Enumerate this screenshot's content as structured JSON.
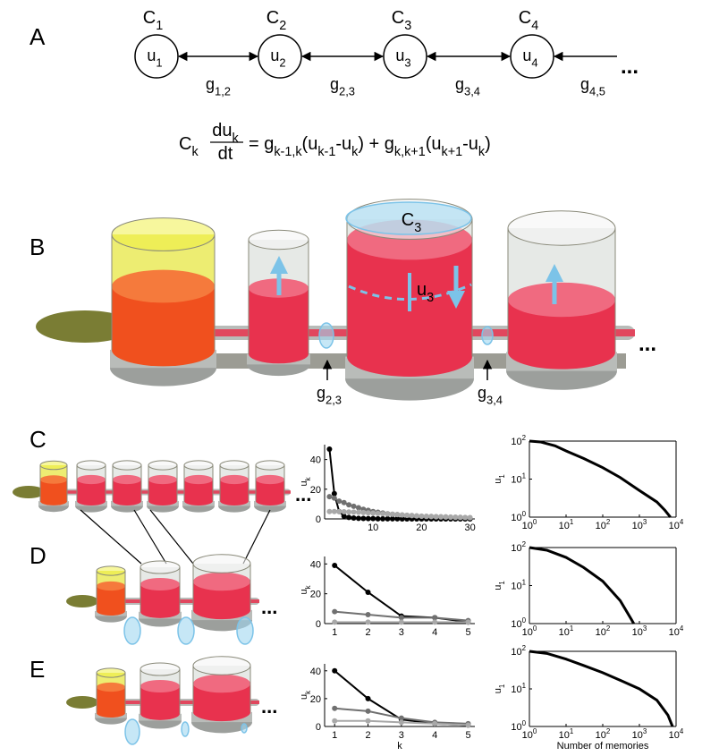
{
  "panel_labels": [
    "A",
    "B",
    "C",
    "D",
    "E"
  ],
  "diagram_a": {
    "nodes": [
      {
        "capacitance": {
          "main": "C",
          "sub": "1"
        },
        "label": {
          "main": "u",
          "sub": "1"
        }
      },
      {
        "capacitance": {
          "main": "C",
          "sub": "2"
        },
        "label": {
          "main": "u",
          "sub": "2"
        }
      },
      {
        "capacitance": {
          "main": "C",
          "sub": "3"
        },
        "label": {
          "main": "u",
          "sub": "3"
        }
      },
      {
        "capacitance": {
          "main": "C",
          "sub": "4"
        },
        "label": {
          "main": "u",
          "sub": "4"
        }
      }
    ],
    "conductances": [
      {
        "main": "g",
        "sub": "1,2"
      },
      {
        "main": "g",
        "sub": "2,3"
      },
      {
        "main": "g",
        "sub": "3,4"
      },
      {
        "main": "g",
        "sub": "4,5"
      }
    ],
    "ellipsis": "..."
  },
  "equation": {
    "lhs": {
      "main": "C",
      "sub": "k"
    },
    "numerator": {
      "main": "du",
      "sub": "k"
    },
    "denominator": "dt",
    "rhs": [
      {
        "text": "= g"
      },
      {
        "sub": "k-1,k"
      },
      {
        "text": "(u"
      },
      {
        "sub": "k-1"
      },
      {
        "text": "-u"
      },
      {
        "sub": "k"
      },
      {
        "text": ") + g"
      },
      {
        "sub": "k,k+1"
      },
      {
        "text": "(u"
      },
      {
        "sub": "k+1"
      },
      {
        "text": "-u"
      },
      {
        "sub": "k"
      },
      {
        "text": ")"
      }
    ]
  },
  "panel_b": {
    "capacitance": {
      "main": "C",
      "sub": "3"
    },
    "potential": {
      "main": "u",
      "sub": "3"
    },
    "conductances": [
      {
        "main": "g",
        "sub": "2,3"
      },
      {
        "main": "g",
        "sub": "3,4"
      }
    ],
    "ellipsis": "..."
  },
  "panel_c": {
    "ellipsis": "..."
  },
  "panel_d": {
    "ellipsis": "..."
  },
  "panel_e": {
    "ellipsis": "..."
  },
  "chart_data": [
    {
      "type": "line",
      "marker": "o",
      "box": false,
      "ylabel": {
        "main": "u",
        "sub": "k"
      },
      "x": [
        1,
        2,
        3,
        4,
        5,
        6,
        7,
        8,
        9,
        10,
        11,
        12,
        13,
        14,
        15,
        16,
        17,
        18,
        19,
        20,
        21,
        22,
        23,
        24,
        25,
        26,
        27,
        28,
        29,
        30
      ],
      "xlim": [
        0,
        31
      ],
      "ylim": [
        0,
        50
      ],
      "xticks": [
        10,
        20,
        30
      ],
      "yticks": [
        0,
        20,
        40
      ],
      "series": [
        {
          "color": "#000000",
          "values": [
            47,
            17,
            5,
            1.8,
            1,
            0.6,
            0.4,
            0.3,
            0.2,
            0.2,
            0.1,
            0.1,
            0.1,
            0.1,
            0.1,
            0,
            0,
            0,
            0,
            0,
            0,
            0,
            0,
            0,
            0,
            0,
            0,
            0,
            0,
            0
          ]
        },
        {
          "color": "#707070",
          "values": [
            15,
            14,
            12,
            11,
            9.5,
            8.5,
            7.5,
            6.5,
            5.8,
            5,
            4.5,
            4,
            3.5,
            3.2,
            2.9,
            2.6,
            2.3,
            2.1,
            1.9,
            1.7,
            1.5,
            1.4,
            1.3,
            1.2,
            1.1,
            1,
            0.9,
            0.8,
            0.8,
            0.7
          ]
        },
        {
          "color": "#a8a8a8",
          "values": [
            5,
            5,
            4.9,
            4.8,
            4.7,
            4.6,
            4.5,
            4.3,
            4.1,
            3.9,
            3.7,
            3.5,
            3.3,
            3.1,
            2.9,
            2.7,
            2.5,
            2.3,
            2.1,
            1.9,
            1.8,
            1.7,
            1.6,
            1.5,
            1.4,
            1.3,
            1.2,
            1.1,
            1,
            0.9
          ]
        }
      ]
    },
    {
      "type": "line",
      "log": true,
      "box": true,
      "ylabel": {
        "main": "u",
        "sub": "1"
      },
      "x": [
        1,
        2,
        5,
        10,
        30,
        100,
        300,
        1000,
        3000,
        5000,
        7000
      ],
      "xlim": [
        1,
        10000
      ],
      "ylim": [
        1,
        100
      ],
      "xticks": [
        {
          "value": 1,
          "label": "10",
          "exponent": "0"
        },
        {
          "value": 10,
          "label": "10",
          "exponent": "1"
        },
        {
          "value": 100,
          "label": "10",
          "exponent": "2"
        },
        {
          "value": 1000,
          "label": "10",
          "exponent": "3"
        },
        {
          "value": 10000,
          "label": "10",
          "exponent": "4"
        }
      ],
      "yticks": [
        {
          "value": 1,
          "label": "10",
          "exponent": "0"
        },
        {
          "value": 10,
          "label": "10",
          "exponent": "1"
        },
        {
          "value": 100,
          "label": "10",
          "exponent": "2"
        }
      ],
      "series": [
        {
          "color": "#000000",
          "values": [
            100,
            95,
            75,
            55,
            35,
            20,
            11,
            5,
            2.5,
            1.5,
            1
          ]
        }
      ]
    },
    {
      "type": "line",
      "marker": "o",
      "box": false,
      "ylabel": {
        "main": "u",
        "sub": "k"
      },
      "x": [
        1,
        2,
        3,
        4,
        5
      ],
      "xlim": [
        0.7,
        5.2
      ],
      "ylim": [
        0,
        45
      ],
      "xticks": [
        1,
        2,
        3,
        4,
        5
      ],
      "yticks": [
        0,
        20,
        40
      ],
      "series": [
        {
          "color": "#000000",
          "values": [
            39,
            21,
            5,
            4,
            1
          ]
        },
        {
          "color": "#707070",
          "values": [
            8,
            6,
            4,
            4,
            2
          ]
        },
        {
          "color": "#a8a8a8",
          "values": [
            1,
            1,
            1,
            1,
            1
          ]
        }
      ]
    },
    {
      "type": "line",
      "log": true,
      "box": true,
      "ylabel": {
        "main": "u",
        "sub": "1"
      },
      "x": [
        1,
        3,
        10,
        30,
        100,
        300,
        600,
        700
      ],
      "xlim": [
        1,
        10000
      ],
      "ylim": [
        1,
        100
      ],
      "xticks": [
        {
          "value": 1,
          "label": "10",
          "exponent": "0"
        },
        {
          "value": 10,
          "label": "10",
          "exponent": "1"
        },
        {
          "value": 100,
          "label": "10",
          "exponent": "2"
        },
        {
          "value": 1000,
          "label": "10",
          "exponent": "3"
        },
        {
          "value": 10000,
          "label": "10",
          "exponent": "4"
        }
      ],
      "yticks": [
        {
          "value": 1,
          "label": "10",
          "exponent": "0"
        },
        {
          "value": 10,
          "label": "10",
          "exponent": "1"
        },
        {
          "value": 100,
          "label": "10",
          "exponent": "2"
        }
      ],
      "series": [
        {
          "color": "#000000",
          "values": [
            100,
            85,
            55,
            30,
            13,
            4,
            1.3,
            1
          ]
        }
      ]
    },
    {
      "type": "line",
      "marker": "o",
      "box": false,
      "ylabel": {
        "main": "u",
        "sub": "k"
      },
      "xlabel": "k",
      "x": [
        1,
        2,
        3,
        4,
        5
      ],
      "xlim": [
        0.7,
        5.2
      ],
      "ylim": [
        0,
        45
      ],
      "xticks": [
        1,
        2,
        3,
        4,
        5
      ],
      "yticks": [
        0,
        20,
        40
      ],
      "series": [
        {
          "color": "#000000",
          "values": [
            40,
            20,
            5,
            2,
            1
          ]
        },
        {
          "color": "#707070",
          "values": [
            13,
            11,
            6,
            3,
            2
          ]
        },
        {
          "color": "#a8a8a8",
          "values": [
            4,
            4,
            3,
            2,
            1
          ]
        }
      ]
    },
    {
      "type": "line",
      "log": true,
      "box": true,
      "ylabel": {
        "main": "u",
        "sub": "1"
      },
      "xlabel": "Number of memories",
      "x": [
        1,
        3,
        10,
        30,
        100,
        300,
        1000,
        3000,
        6000,
        8000
      ],
      "xlim": [
        1,
        10000
      ],
      "ylim": [
        1,
        100
      ],
      "xticks": [
        {
          "value": 1,
          "label": "10",
          "exponent": "0"
        },
        {
          "value": 10,
          "label": "10",
          "exponent": "1"
        },
        {
          "value": 100,
          "label": "10",
          "exponent": "2"
        },
        {
          "value": 1000,
          "label": "10",
          "exponent": "3"
        },
        {
          "value": 10000,
          "label": "10",
          "exponent": "4"
        }
      ],
      "yticks": [
        {
          "value": 1,
          "label": "10",
          "exponent": "0"
        },
        {
          "value": 10,
          "label": "10",
          "exponent": "1"
        },
        {
          "value": 100,
          "label": "10",
          "exponent": "2"
        }
      ],
      "series": [
        {
          "color": "#000000",
          "values": [
            100,
            88,
            62,
            42,
            27,
            17,
            10,
            5,
            2,
            1
          ]
        }
      ]
    }
  ]
}
